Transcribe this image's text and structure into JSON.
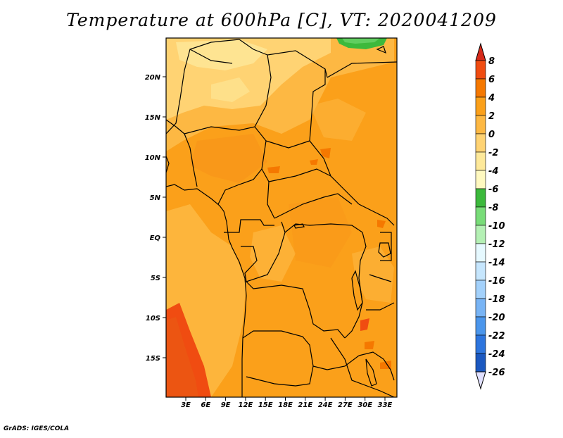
{
  "title": "Temperature at 600hPa [C], VT: 2020041209",
  "credit": "GrADS: IGES/COLA",
  "map": {
    "lat_labels": [
      "20N",
      "15N",
      "10N",
      "5N",
      "EQ",
      "5S",
      "10S",
      "15S"
    ],
    "lon_labels": [
      "3E",
      "6E",
      "9E",
      "12E",
      "15E",
      "18E",
      "21E",
      "24E",
      "27E",
      "30E",
      "33E"
    ],
    "lat_range": [
      -20,
      25
    ],
    "lon_range": [
      0,
      35
    ]
  },
  "colorbar": {
    "labels": [
      "8",
      "6",
      "4",
      "2",
      "0",
      "-2",
      "-4",
      "-6",
      "-8",
      "-10",
      "-12",
      "-14",
      "-16",
      "-18",
      "-20",
      "-22",
      "-24",
      "-26"
    ],
    "colors": [
      "#e12a1e",
      "#f04c11",
      "#f57800",
      "#fba01a",
      "#fdb843",
      "#ffd373",
      "#fee99a",
      "#fff9c0",
      "#3cb93c",
      "#78dc78",
      "#b4f0b4",
      "#e6f9ff",
      "#c6e6fd",
      "#a3d1fb",
      "#78b4f5",
      "#4b96ec",
      "#2d75de",
      "#1b58c0",
      "#103da0",
      "#0a2279"
    ],
    "top_arrow_color": "#d62a1a",
    "bottom_arrow_color": "#e0e0ff"
  }
}
